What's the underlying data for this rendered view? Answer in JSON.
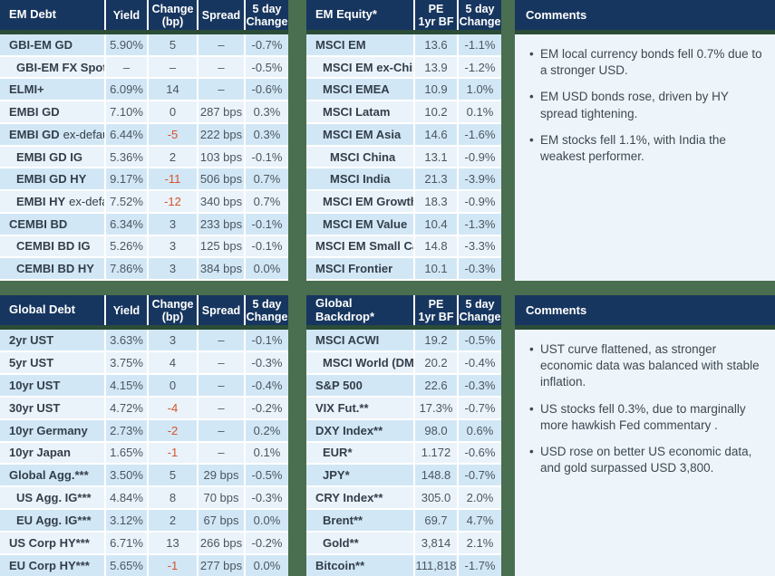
{
  "colors": {
    "page_bg": "#4a6e50",
    "header_strip": "#2b4c36",
    "header_bg": "#17365f",
    "row_dark": "#d2e7f5",
    "row_light": "#eaf3fa",
    "comments_bg": "#edf5fb",
    "negative_change": "#d6522b"
  },
  "tables": {
    "em_debt": {
      "title": "EM Debt",
      "columns": [
        "Yield",
        "Change\n(bp)",
        "Spread",
        "5 day\nChange"
      ],
      "change_col": 1,
      "rows": [
        {
          "label": "GBI-EM GD",
          "suffix": "",
          "indent": 0,
          "values": [
            "5.90%",
            "5",
            "–",
            "-0.7%"
          ]
        },
        {
          "label": "GBI-EM FX Spot",
          "suffix": "",
          "indent": 1,
          "values": [
            "–",
            "–",
            "–",
            "-0.5%"
          ]
        },
        {
          "label": "ELMI+",
          "suffix": "",
          "indent": 0,
          "values": [
            "6.09%",
            "14",
            "–",
            "-0.6%"
          ]
        },
        {
          "label": "EMBI GD",
          "suffix": "",
          "indent": 0,
          "values": [
            "7.10%",
            "0",
            "287 bps",
            "0.3%"
          ]
        },
        {
          "label": "EMBI GD",
          "suffix": "ex-default",
          "indent": 0,
          "values": [
            "6.44%",
            "-5",
            "222 bps",
            "0.3%"
          ]
        },
        {
          "label": "EMBI GD IG",
          "suffix": "",
          "indent": 1,
          "values": [
            "5.36%",
            "2",
            "103 bps",
            "-0.1%"
          ]
        },
        {
          "label": "EMBI GD HY",
          "suffix": "",
          "indent": 1,
          "values": [
            "9.17%",
            "-11",
            "506 bps",
            "0.7%"
          ]
        },
        {
          "label": "EMBI HY",
          "suffix": "ex-default",
          "indent": 1,
          "values": [
            "7.52%",
            "-12",
            "340 bps",
            "0.7%"
          ]
        },
        {
          "label": "CEMBI BD",
          "suffix": "",
          "indent": 0,
          "values": [
            "6.34%",
            "3",
            "233 bps",
            "-0.1%"
          ]
        },
        {
          "label": "CEMBI BD IG",
          "suffix": "",
          "indent": 1,
          "values": [
            "5.26%",
            "3",
            "125 bps",
            "-0.1%"
          ]
        },
        {
          "label": "CEMBI BD HY",
          "suffix": "",
          "indent": 1,
          "values": [
            "7.86%",
            "3",
            "384 bps",
            "0.0%"
          ]
        }
      ]
    },
    "em_equity": {
      "title": "EM Equity*",
      "columns": [
        "PE\n1yr BF",
        "5 day\nChange"
      ],
      "change_col": null,
      "rows": [
        {
          "label": "MSCI EM",
          "suffix": "",
          "indent": 0,
          "values": [
            "13.6",
            "-1.1%"
          ]
        },
        {
          "label": "MSCI EM ex-China",
          "suffix": "",
          "indent": 1,
          "values": [
            "13.9",
            "-1.2%"
          ]
        },
        {
          "label": "MSCI EMEA",
          "suffix": "",
          "indent": 1,
          "values": [
            "10.9",
            "1.0%"
          ]
        },
        {
          "label": "MSCI Latam",
          "suffix": "",
          "indent": 1,
          "values": [
            "10.2",
            "0.1%"
          ]
        },
        {
          "label": "MSCI EM Asia",
          "suffix": "",
          "indent": 1,
          "values": [
            "14.6",
            "-1.6%"
          ]
        },
        {
          "label": "MSCI China",
          "suffix": "",
          "indent": 2,
          "values": [
            "13.1",
            "-0.9%"
          ]
        },
        {
          "label": "MSCI India",
          "suffix": "",
          "indent": 2,
          "values": [
            "21.3",
            "-3.9%"
          ]
        },
        {
          "label": "MSCI EM Growth",
          "suffix": "",
          "indent": 1,
          "values": [
            "18.3",
            "-0.9%"
          ]
        },
        {
          "label": "MSCI EM Value",
          "suffix": "",
          "indent": 1,
          "values": [
            "10.4",
            "-1.3%"
          ]
        },
        {
          "label": "MSCI EM Small Cap",
          "suffix": "",
          "indent": 0,
          "values": [
            "14.8",
            "-3.3%"
          ]
        },
        {
          "label": "MSCI Frontier",
          "suffix": "",
          "indent": 0,
          "values": [
            "10.1",
            "-0.3%"
          ]
        }
      ]
    },
    "global_debt": {
      "title": "Global Debt",
      "columns": [
        "Yield",
        "Change\n(bp)",
        "Spread",
        "5 day\nChange"
      ],
      "change_col": 1,
      "rows": [
        {
          "label": "2yr UST",
          "suffix": "",
          "indent": 0,
          "values": [
            "3.63%",
            "3",
            "–",
            "-0.1%"
          ]
        },
        {
          "label": "5yr UST",
          "suffix": "",
          "indent": 0,
          "values": [
            "3.75%",
            "4",
            "–",
            "-0.3%"
          ]
        },
        {
          "label": "10yr UST",
          "suffix": "",
          "indent": 0,
          "values": [
            "4.15%",
            "0",
            "–",
            "-0.4%"
          ]
        },
        {
          "label": "30yr UST",
          "suffix": "",
          "indent": 0,
          "values": [
            "4.72%",
            "-4",
            "–",
            "-0.2%"
          ]
        },
        {
          "label": "10yr Germany",
          "suffix": "",
          "indent": 0,
          "values": [
            "2.73%",
            "-2",
            "–",
            "0.2%"
          ]
        },
        {
          "label": "10yr Japan",
          "suffix": "",
          "indent": 0,
          "values": [
            "1.65%",
            "-1",
            "–",
            "0.1%"
          ]
        },
        {
          "label": "Global Agg.***",
          "suffix": "",
          "indent": 0,
          "values": [
            "3.50%",
            "5",
            "29 bps",
            "-0.5%"
          ]
        },
        {
          "label": "US Agg. IG***",
          "suffix": "",
          "indent": 1,
          "values": [
            "4.84%",
            "8",
            "70 bps",
            "-0.3%"
          ]
        },
        {
          "label": "EU Agg. IG***",
          "suffix": "",
          "indent": 1,
          "values": [
            "3.12%",
            "2",
            "67 bps",
            "0.0%"
          ]
        },
        {
          "label": "US Corp HY***",
          "suffix": "",
          "indent": 0,
          "values": [
            "6.71%",
            "13",
            "266 bps",
            "-0.2%"
          ]
        },
        {
          "label": "EU Corp HY***",
          "suffix": "",
          "indent": 0,
          "values": [
            "5.65%",
            "-1",
            "277 bps",
            "0.0%"
          ]
        }
      ]
    },
    "global_backdrop": {
      "title": "Global Backdrop*",
      "columns": [
        "PE\n1yr BF",
        "5 day\nChange"
      ],
      "change_col": null,
      "rows": [
        {
          "label": "MSCI ACWI",
          "suffix": "",
          "indent": 0,
          "values": [
            "19.2",
            "-0.5%"
          ]
        },
        {
          "label": "MSCI World (DM)",
          "suffix": "",
          "indent": 1,
          "values": [
            "20.2",
            "-0.4%"
          ]
        },
        {
          "label": "S&P 500",
          "suffix": "",
          "indent": 0,
          "values": [
            "22.6",
            "-0.3%"
          ]
        },
        {
          "label": "VIX Fut.**",
          "suffix": "",
          "indent": 0,
          "values": [
            "17.3%",
            "-0.7%"
          ]
        },
        {
          "label": "DXY Index**",
          "suffix": "",
          "indent": 0,
          "values": [
            "98.0",
            "0.6%"
          ]
        },
        {
          "label": "EUR*",
          "suffix": "",
          "indent": 1,
          "values": [
            "1.172",
            "-0.6%"
          ]
        },
        {
          "label": "JPY*",
          "suffix": "",
          "indent": 1,
          "values": [
            "148.8",
            "-0.7%"
          ]
        },
        {
          "label": "CRY Index**",
          "suffix": "",
          "indent": 0,
          "values": [
            "305.0",
            "2.0%"
          ]
        },
        {
          "label": "Brent**",
          "suffix": "",
          "indent": 1,
          "values": [
            "69.7",
            "4.7%"
          ]
        },
        {
          "label": "Gold**",
          "suffix": "",
          "indent": 1,
          "values": [
            "3,814",
            "2.1%"
          ]
        },
        {
          "label": "Bitcoin**",
          "suffix": "",
          "indent": 0,
          "values": [
            "111,818",
            "-1.7%"
          ]
        }
      ]
    }
  },
  "comments_top": {
    "title": "Comments",
    "bullets": [
      "EM local currency bonds fell 0.7% due to a stronger USD.",
      "EM USD bonds rose, driven by HY spread tightening.",
      "EM stocks fell 1.1%, with India the weakest performer."
    ]
  },
  "comments_bottom": {
    "title": "Comments",
    "bullets": [
      "UST curve flattened, as stronger economic data was balanced with stable inflation.",
      "US stocks fell 0.3%, due to marginally more hawkish Fed commentary .",
      "USD rose on better US economic data, and gold surpassed USD 3,800."
    ]
  }
}
